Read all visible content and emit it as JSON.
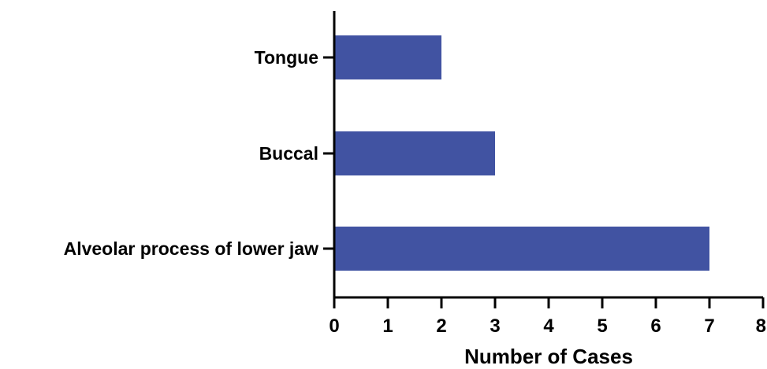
{
  "chart_data": {
    "type": "bar",
    "orientation": "horizontal",
    "categories": [
      "Tongue",
      "Buccal",
      "Alveolar process of lower jaw"
    ],
    "values": [
      2,
      3,
      7
    ],
    "xlabel": "Number of Cases",
    "ylabel": "",
    "xlim": [
      0,
      8
    ],
    "xticks": [
      "0",
      "1",
      "2",
      "3",
      "4",
      "5",
      "6",
      "7",
      "8"
    ],
    "bar_color": "#4153a2",
    "grid": false
  }
}
